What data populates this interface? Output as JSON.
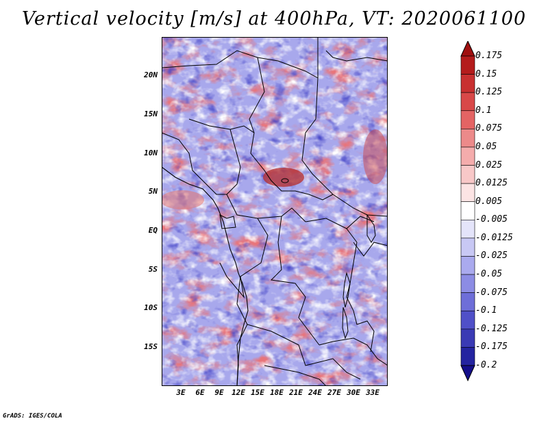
{
  "title": "Vertical velocity [m/s] at 400hPa, VT: 2020061100",
  "credit": "GrADS: IGES/COLA",
  "map": {
    "region": "Central Africa",
    "variable": "Vertical velocity",
    "units": "m/s",
    "level": "400hPa",
    "valid_time": "2020061100"
  },
  "lat_labels": [
    "20N",
    "15N",
    "10N",
    "5N",
    "EQ",
    "5S",
    "10S",
    "15S"
  ],
  "lon_labels": [
    "3E",
    "6E",
    "9E",
    "12E",
    "15E",
    "18E",
    "21E",
    "24E",
    "27E",
    "30E",
    "33E"
  ],
  "colorbar": {
    "labels": [
      "0.175",
      "0.15",
      "0.125",
      "0.1",
      "0.075",
      "0.05",
      "0.025",
      "0.0125",
      "0.005",
      "-0.005",
      "-0.0125",
      "-0.025",
      "-0.05",
      "-0.075",
      "-0.1",
      "-0.125",
      "-0.175",
      "-0.2"
    ],
    "colors": [
      "#a01010",
      "#b41c1c",
      "#c83030",
      "#d84848",
      "#e46464",
      "#ec8a8a",
      "#f4acac",
      "#f8c8c8",
      "#fce4e4",
      "#ffffff",
      "#e4e4fa",
      "#c8c8f4",
      "#aaaaee",
      "#8c8ce4",
      "#6e6ed8",
      "#5050c8",
      "#3a3ab4",
      "#2424a0",
      "#140e8a"
    ]
  }
}
